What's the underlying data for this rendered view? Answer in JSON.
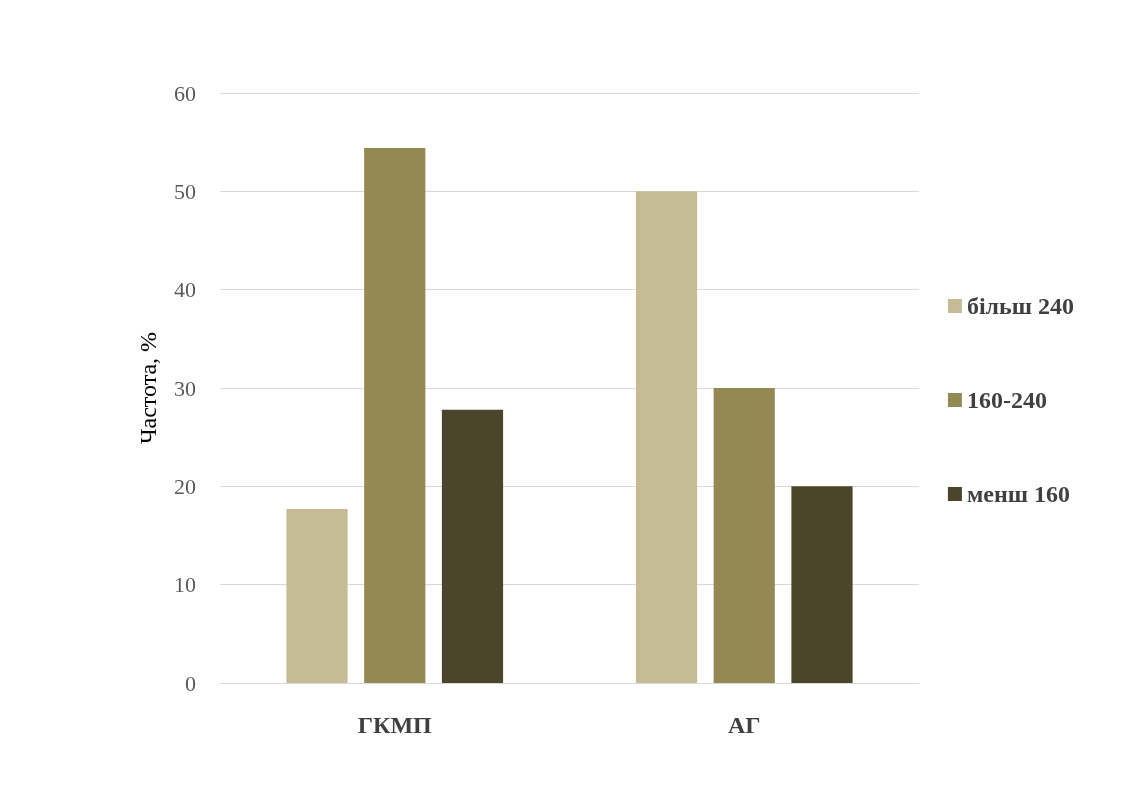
{
  "chart_data": {
    "type": "bar",
    "ylabel": "Частота, %",
    "categories": [
      "ГКМП",
      "АГ"
    ],
    "series": [
      {
        "name": "більш 240",
        "color": "#c5bc96",
        "values": [
          17.7,
          50
        ]
      },
      {
        "name": "160-240",
        "color": "#958953",
        "values": [
          54.4,
          30
        ]
      },
      {
        "name": "менш 160",
        "color": "#4b452b",
        "values": [
          27.8,
          20
        ]
      }
    ],
    "ylim": [
      0,
      60
    ],
    "yticks": [
      0,
      10,
      20,
      30,
      40,
      50,
      60
    ],
    "grid": "y",
    "legend": "right"
  }
}
